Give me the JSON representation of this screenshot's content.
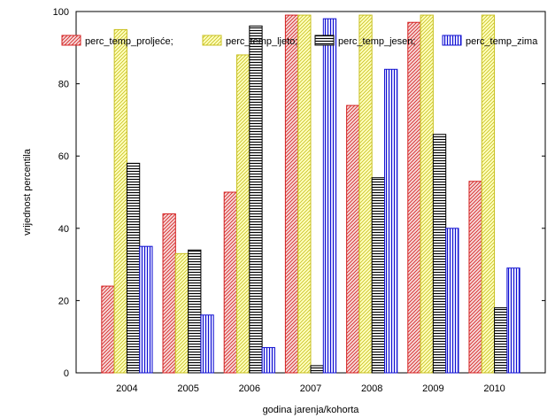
{
  "chart_data": {
    "type": "bar",
    "xlabel": "godina jarenja/kohorta",
    "ylabel": "vrijednost percentila",
    "ylim": [
      0,
      100
    ],
    "yticks": [
      0,
      20,
      40,
      60,
      80,
      100
    ],
    "grid": false,
    "legend_position": "top",
    "categories": [
      "2004",
      "2005",
      "2006",
      "2007",
      "2008",
      "2009",
      "2010"
    ],
    "series": [
      {
        "name": "perc_temp_proljeće;",
        "values": [
          24,
          44,
          50,
          99,
          74,
          97,
          53
        ],
        "color": "#d42020",
        "fill": "#f6d8d8",
        "pattern": "diagonal"
      },
      {
        "name": "perc_temp_ljeto;",
        "values": [
          95,
          33,
          88,
          99,
          99,
          99,
          99
        ],
        "color": "#c8c020",
        "fill": "#ffffc0",
        "pattern": "diagonal"
      },
      {
        "name": "perc_temp_jesen;",
        "values": [
          58,
          34,
          96,
          2,
          54,
          66,
          18
        ],
        "color": "#000000",
        "fill": "#e8e8e8",
        "pattern": "horizontal"
      },
      {
        "name": "perc_temp_zima",
        "values": [
          35,
          16,
          7,
          98,
          84,
          40,
          29
        ],
        "color": "#1010d0",
        "fill": "#e0e0ff",
        "pattern": "vertical"
      }
    ]
  }
}
